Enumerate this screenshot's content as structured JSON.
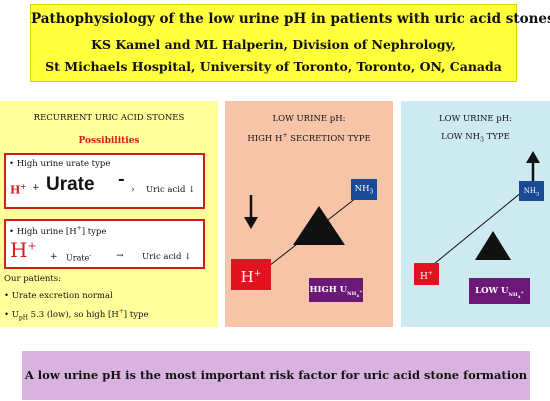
{
  "title": {
    "line1": "Pathophysiology of the low urine pH in patients with uric acid stones",
    "line2": "KS Kamel and ML Halperin, Division of Nephrology,",
    "line3": "St Michaels Hospital, University of Toronto, Toronto, ON, Canada"
  },
  "left_panel": {
    "heading": "RECURRENT URIC ACID STONES",
    "possibilities": "Possibilities",
    "box1": {
      "label": "• High urine urate type",
      "h": "H",
      "h_sup": "+",
      "plus": "+",
      "urate": "Urate",
      "urate_sup": "-",
      "arrow": "›",
      "product": "Uric acid ↓"
    },
    "box2": {
      "label_pre": "• High urine [H",
      "label_sup": "+",
      "label_post": "] type",
      "h": "H",
      "h_sup": "+",
      "plus": "+",
      "urate": "Urate",
      "urate_sup": "-",
      "arrow": "→",
      "product": "Uric acid ↓"
    },
    "our_patients": "Our patients:",
    "bullet1": "• Urate excretion normal",
    "bullet2": {
      "u": "• U",
      "sub": "pH",
      "mid": " 5.3 (low), so high [H",
      "sup": "+",
      "end": "] type"
    }
  },
  "mid_panel": {
    "heading1": "LOW URINE pH:",
    "heading2_pre": "HIGH H",
    "heading2_sup": "+",
    "heading2_post": " SECRETION TYPE",
    "nh3": "NH",
    "nh3_sub": "3",
    "h": "H",
    "h_sup": "+",
    "label_pre": "HIGH U",
    "label_sub": "NH",
    "label_subsub": "4",
    "label_sup": "+"
  },
  "right_panel": {
    "heading1": "LOW URINE pH:",
    "heading2_pre": "LOW NH",
    "heading2_sub": "3",
    "heading2_post": "  TYPE",
    "nh3": "NH",
    "nh3_sub": "3",
    "h": "H",
    "h_sup": "+",
    "label_pre": "LOW U",
    "label_sub": "NH",
    "label_subsub": "4",
    "label_sup": "+"
  },
  "bottom": {
    "text": "A low urine pH is the most important risk factor for uric acid stone formation"
  },
  "colors": {
    "title_bg": "#ffff3b",
    "left_bg": "#ffff9b",
    "mid_bg": "#f8c4a8",
    "right_bg": "#cdeaf0",
    "accent_red": "#d41a1a",
    "nh3_blue": "#1a4a96",
    "purple": "#6a1a76",
    "bottom_bg": "#d9b3e0"
  }
}
